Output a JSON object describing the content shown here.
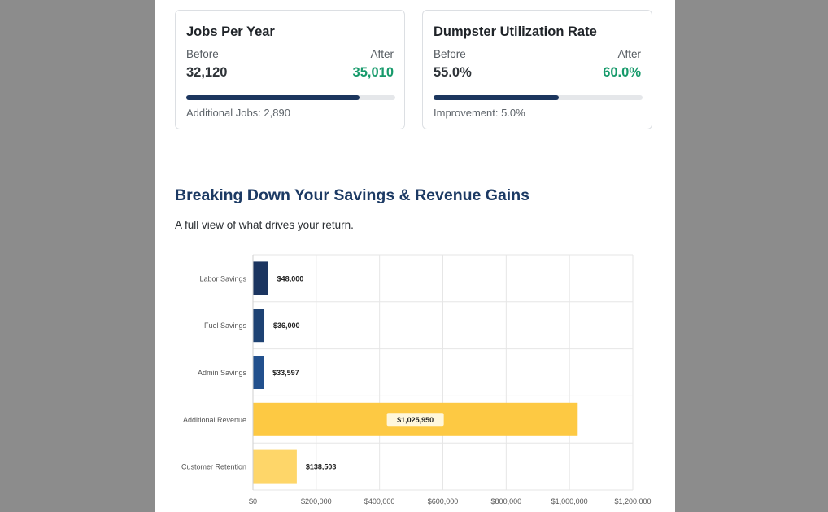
{
  "cards": [
    {
      "title": "Jobs Per Year",
      "before_label": "Before",
      "after_label": "After",
      "before_value": "32,120",
      "after_value": "35,010",
      "progress_fraction": 0.83,
      "footer": "Additional Jobs: 2,890"
    },
    {
      "title": "Dumpster Utilization Rate",
      "before_label": "Before",
      "after_label": "After",
      "before_value": "55.0%",
      "after_value": "60.0%",
      "progress_fraction": 0.6,
      "footer": "Improvement: 5.0%"
    }
  ],
  "section": {
    "title": "Breaking Down Your Savings & Revenue Gains",
    "subtitle": "A full view of what drives your return."
  },
  "colors": {
    "navy": "#1c365e",
    "green": "#179a6b",
    "bar_dark": "#1b3560",
    "bar_mid": "#1e4273",
    "bar_blue": "#22508d",
    "bar_gold": "#fdc943",
    "bar_gold_light": "#fed669"
  },
  "chart_data": {
    "type": "bar",
    "orientation": "horizontal",
    "categories": [
      "Labor Savings",
      "Fuel Savings",
      "Admin Savings",
      "Additional Revenue",
      "Customer Retention"
    ],
    "values": [
      48000,
      36000,
      33597,
      1025950,
      138503
    ],
    "value_labels": [
      "$48,000",
      "$36,000",
      "$33,597",
      "$1,025,950",
      "$138,503"
    ],
    "bar_colors": [
      "#1b3560",
      "#1e4273",
      "#22508d",
      "#fdc943",
      "#fed669"
    ],
    "xlim": [
      0,
      1200000
    ],
    "x_ticks": [
      0,
      200000,
      400000,
      600000,
      800000,
      1000000,
      1200000
    ],
    "x_tick_labels": [
      "$0",
      "$200,000",
      "$400,000",
      "$600,000",
      "$800,000",
      "$1,000,000",
      "$1,200,000"
    ],
    "grid": true,
    "title": "",
    "xlabel": "",
    "ylabel": ""
  }
}
